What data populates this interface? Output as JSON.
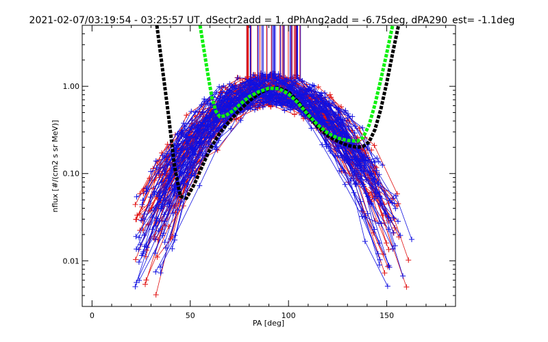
{
  "chart_data": {
    "type": "scatter",
    "title": "2021-02-07/03:19:54 - 03:25:57 UT, dSectr2add = 1, dPhAng2add = -6.75deg, dPA290_est=  -1.1deg",
    "xlabel": "PA [deg]",
    "ylabel": "nflux [#/(cm2 s sr MeV)]",
    "xlim": [
      -5,
      185
    ],
    "ylim": [
      0.003,
      5.0
    ],
    "yscale": "log",
    "x_ticks": [
      0,
      50,
      100,
      150
    ],
    "x_tick_labels": [
      "0",
      "50",
      "100",
      "150"
    ],
    "y_ticks": [
      0.01,
      0.1,
      1.0
    ],
    "y_tick_labels": [
      "0.01",
      "0.10",
      "1.00"
    ],
    "grid": false,
    "legend": "none",
    "colors": {
      "red_series": "#e01010",
      "blue_series": "#1010e0",
      "black_fit": "#000000",
      "green_fit": "#10f010"
    },
    "series": [
      {
        "color": "black",
        "style": "dashed-thick",
        "x": [
          33,
          36,
          39,
          42,
          45,
          48,
          52,
          56,
          60,
          65,
          70,
          75,
          80,
          85,
          90,
          95,
          100,
          105,
          110,
          115,
          120,
          125,
          130,
          135,
          138,
          141,
          144,
          147,
          150,
          153,
          156
        ],
        "y": [
          5.0,
          1.5,
          0.45,
          0.12,
          0.055,
          0.052,
          0.075,
          0.12,
          0.19,
          0.29,
          0.4,
          0.53,
          0.68,
          0.83,
          0.94,
          0.96,
          0.86,
          0.66,
          0.47,
          0.34,
          0.27,
          0.235,
          0.21,
          0.2,
          0.205,
          0.23,
          0.32,
          0.55,
          1.1,
          2.4,
          5.0
        ]
      },
      {
        "color": "green",
        "style": "dashed-thick",
        "x": [
          55,
          57,
          59,
          61,
          63,
          65,
          68,
          72,
          76,
          80,
          85,
          90,
          95,
          100,
          105,
          110,
          115,
          120,
          125,
          130,
          135,
          138,
          141,
          144,
          147,
          150,
          153
        ],
        "y": [
          5.0,
          2.6,
          1.35,
          0.75,
          0.52,
          0.45,
          0.46,
          0.53,
          0.64,
          0.76,
          0.87,
          0.95,
          0.94,
          0.82,
          0.64,
          0.47,
          0.36,
          0.29,
          0.255,
          0.24,
          0.235,
          0.26,
          0.36,
          0.62,
          1.2,
          2.4,
          5.0
        ]
      }
    ]
  }
}
